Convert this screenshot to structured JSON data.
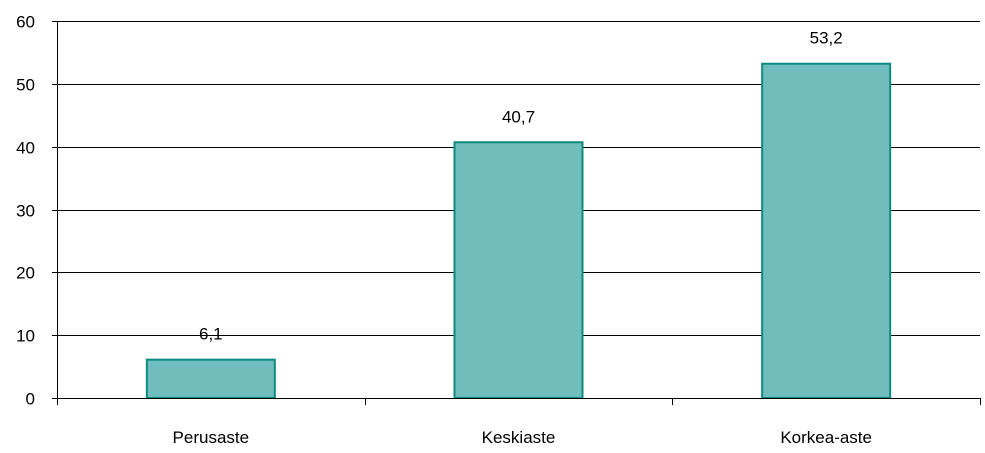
{
  "chart_data": {
    "type": "bar",
    "title": "",
    "xlabel": "",
    "ylabel": "",
    "categories": [
      "Perusaste",
      "Keskiaste",
      "Korkea-aste"
    ],
    "values": [
      6.1,
      40.7,
      53.2
    ],
    "value_labels": [
      "6,1",
      "40,7",
      "53,2"
    ],
    "ylim": [
      0,
      60
    ],
    "yticks": [
      0,
      10,
      20,
      30,
      40,
      50,
      60
    ],
    "ytick_labels": [
      "0",
      "10",
      "20",
      "30",
      "40",
      "50",
      "60"
    ],
    "grid": true,
    "legend": "none",
    "colors": {
      "bar_fill": "#70bdbd",
      "bar_stroke": "#0f8a80",
      "grid": "#000000",
      "axis": "#000000"
    }
  }
}
